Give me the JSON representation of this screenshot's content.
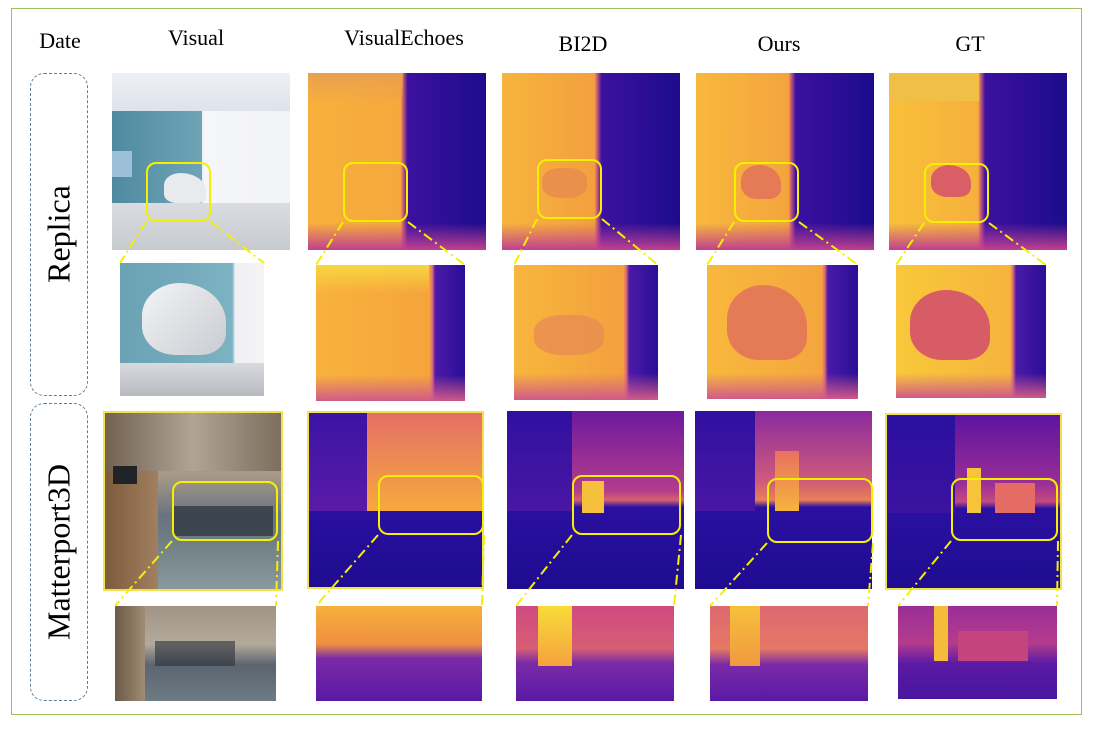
{
  "figure": {
    "columns": [
      "Date",
      "Visual",
      "VisualEchoes",
      "BI2D",
      "Ours",
      "GT"
    ],
    "rows": [
      {
        "label": "Replica"
      },
      {
        "label": "Matterport3D"
      }
    ]
  },
  "colors": {
    "frame": "#9cc060",
    "zoom_box": "#f4f000",
    "dashed_outline": "#5a80a0",
    "depth_far": "#1a0a8c",
    "depth_mid": "#e36080",
    "depth_near": "#f8f040"
  }
}
